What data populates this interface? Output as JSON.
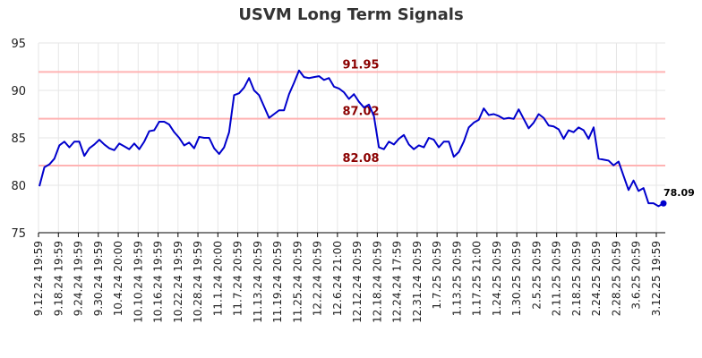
{
  "chart_data": {
    "type": "line",
    "title": "USVM Long Term Signals",
    "xlabel": "",
    "ylabel": "",
    "ylim": [
      75,
      95
    ],
    "y_ticks": [
      75,
      80,
      85,
      90,
      95
    ],
    "grid": true,
    "x_tick_labels": [
      "9.12.24 19:59",
      "9.18.24 19:59",
      "9.24.24 19:59",
      "9.30.24 19:59",
      "10.4.24 20:00",
      "10.10.24 19:59",
      "10.16.24 19:59",
      "10.22.24 19:59",
      "10.28.24 19:59",
      "11.1.24 20:00",
      "11.7.24 20:59",
      "11.13.24 20:59",
      "11.19.24 20:59",
      "11.25.24 20:59",
      "12.2.24 20:59",
      "12.6.24 21:00",
      "12.12.24 20:59",
      "12.18.24 20:59",
      "12.24.24 17:59",
      "12.31.24 20:59",
      "1.7.25 20:59",
      "1.13.25 20:59",
      "1.17.25 21:00",
      "1.24.25 20:59",
      "1.30.25 20:59",
      "2.5.25 20:59",
      "2.11.25 20:59",
      "2.18.25 20:59",
      "2.24.25 20:59",
      "2.28.25 20:59",
      "3.6.25 20:59",
      "3.12.25 19:59"
    ],
    "horizontal_lines": [
      {
        "value": 91.95,
        "label": "91.95",
        "color": "#ffb3b3"
      },
      {
        "value": 87.02,
        "label": "87.02",
        "color": "#ffb3b3"
      },
      {
        "value": 82.08,
        "label": "82.08",
        "color": "#ffb3b3"
      }
    ],
    "series": [
      {
        "color": "#0000cc",
        "values": [
          79.9,
          81.9,
          82.2,
          82.8,
          84.2,
          84.6,
          84.0,
          84.6,
          84.6,
          83.1,
          83.9,
          84.3,
          84.8,
          84.3,
          83.9,
          83.7,
          84.4,
          84.1,
          83.8,
          84.4,
          83.8,
          84.6,
          85.7,
          85.8,
          86.7,
          86.7,
          86.4,
          85.6,
          85.0,
          84.2,
          84.5,
          83.9,
          85.1,
          85.0,
          85.0,
          83.9,
          83.3,
          84.0,
          85.6,
          89.5,
          89.7,
          90.3,
          91.3,
          90.0,
          89.5,
          88.3,
          87.1,
          87.5,
          87.9,
          87.9,
          89.6,
          90.8,
          92.1,
          91.4,
          91.3,
          91.4,
          91.5,
          91.1,
          91.3,
          90.4,
          90.2,
          89.8,
          89.1,
          89.6,
          88.8,
          88.2,
          88.5,
          87.3,
          84.0,
          83.8,
          84.6,
          84.3,
          84.9,
          85.3,
          84.3,
          83.8,
          84.2,
          84.0,
          85.0,
          84.8,
          84.0,
          84.6,
          84.6,
          83.0,
          83.5,
          84.6,
          86.1,
          86.6,
          86.9,
          88.1,
          87.4,
          87.5,
          87.3,
          87.0,
          87.1,
          87.0,
          88.0,
          87.0,
          86.0,
          86.6,
          87.5,
          87.1,
          86.3,
          86.2,
          85.9,
          84.9,
          85.8,
          85.6,
          86.1,
          85.8,
          84.9,
          86.1,
          82.8,
          82.7,
          82.6,
          82.1,
          82.5,
          81.0,
          79.5,
          80.5,
          79.4,
          79.7,
          78.1,
          78.1,
          77.8,
          78.09
        ]
      }
    ],
    "last_value_label": "78.09"
  }
}
